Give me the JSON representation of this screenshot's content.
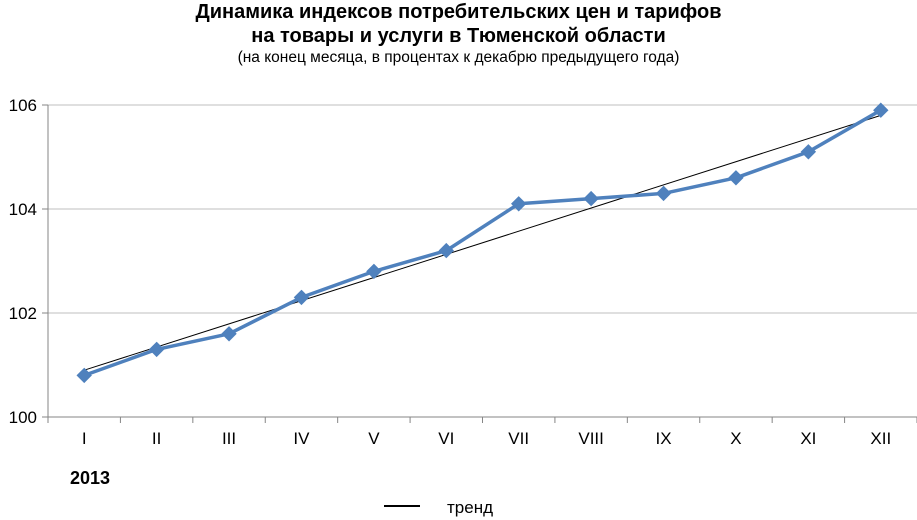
{
  "chart_data": {
    "type": "line",
    "title_line1": "Динамика индексов потребительских цен и тарифов",
    "title_line2": "на товары и услуги в Тюменской области",
    "subtitle": "(на конец месяца, в процентах к декабрю предыдущего года)",
    "categories": [
      "I",
      "II",
      "III",
      "IV",
      "V",
      "VI",
      "VII",
      "VIII",
      "IX",
      "X",
      "XI",
      "XII"
    ],
    "year_label": "2013",
    "series": [
      {
        "values": [
          100.8,
          101.3,
          101.6,
          102.3,
          102.8,
          103.2,
          104.1,
          104.2,
          104.3,
          104.6,
          105.1,
          105.9
        ]
      }
    ],
    "trend": {
      "name": "тренд",
      "start": 100.9,
      "end": 105.8
    },
    "ylim": [
      100,
      106
    ],
    "yticks": [
      100,
      102,
      104,
      106
    ],
    "grid": true,
    "legend_position": "bottom",
    "colors": {
      "series": "#4f81bd",
      "trend": "#000000",
      "grid": "#bfbfbf",
      "axis": "#868686"
    }
  }
}
